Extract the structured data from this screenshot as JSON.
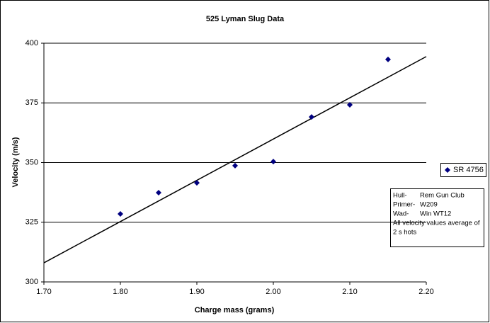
{
  "chart_data": {
    "type": "scatter",
    "title": "525 Lyman Slug Data",
    "x_label": "Charge mass (grams)",
    "y_label": "Velocity (m/s)",
    "series": [
      {
        "name": "SR  4756",
        "color": "#000080",
        "x": [
          1.8,
          1.85,
          1.9,
          1.95,
          2.0,
          2.05,
          2.1,
          2.15
        ],
        "values": [
          328.5,
          337.4,
          341.5,
          348.7,
          350.4,
          369.1,
          374.2,
          393.2
        ]
      }
    ],
    "trendline": {
      "color": "#000000",
      "x": [
        1.7,
        2.2
      ],
      "values": [
        308,
        394.4
      ]
    },
    "xlim": [
      1.7,
      2.2
    ],
    "xticks": [
      {
        "value": 1.7,
        "label": "1.70"
      },
      {
        "value": 1.8,
        "label": "1.80"
      },
      {
        "value": 1.9,
        "label": "1.90"
      },
      {
        "value": 2.0,
        "label": "2.00"
      },
      {
        "value": 2.1,
        "label": "2.10"
      },
      {
        "value": 2.2,
        "label": "2.20"
      }
    ],
    "ylim": [
      300,
      400
    ],
    "yticks": [
      300,
      325,
      350,
      375,
      400
    ],
    "grid": true,
    "legend": "right",
    "annotation": {
      "rows": [
        [
          "Hull-",
          "Rem Gun Club"
        ],
        [
          "Primer-",
          "W209"
        ],
        [
          "Wad-",
          "Win WT12"
        ]
      ],
      "note": [
        "All velocity values average of",
        "2 s hots"
      ]
    }
  }
}
